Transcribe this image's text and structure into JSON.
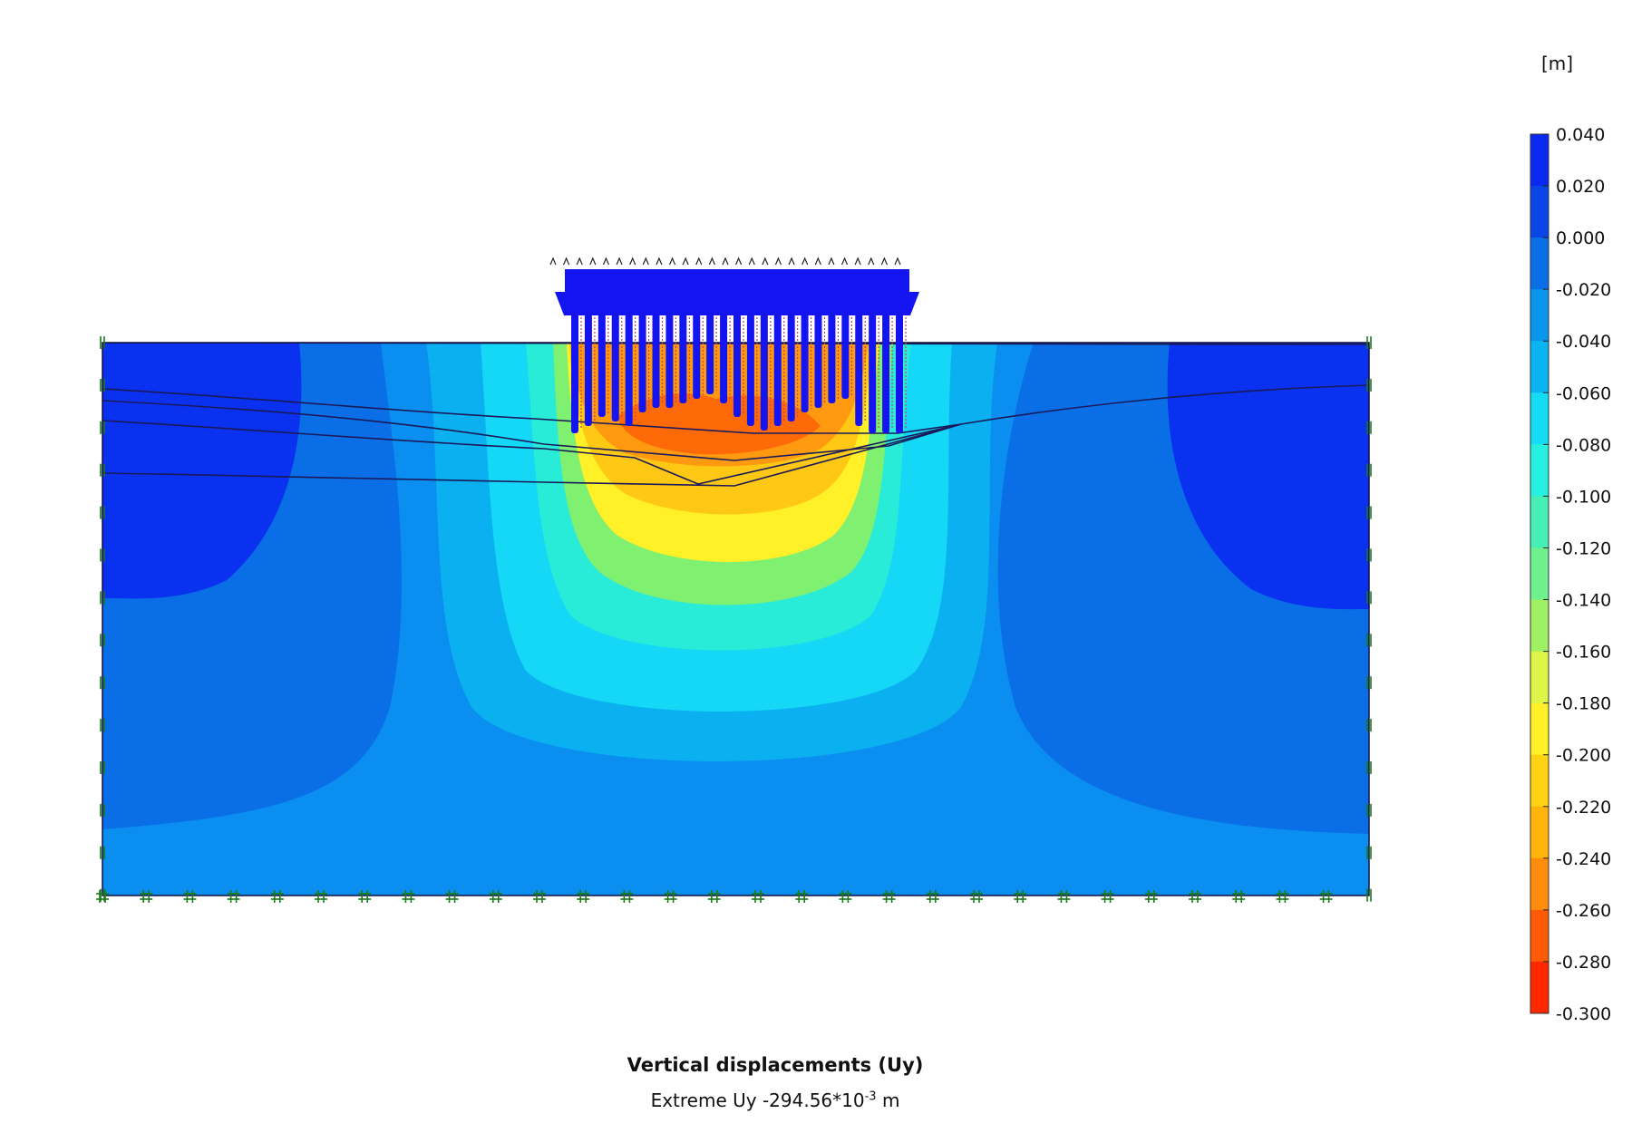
{
  "caption": {
    "title": "Vertical displacements (Uy)",
    "extreme_prefix": "Extreme Uy -294.56*10",
    "extreme_exponent": "-3",
    "extreme_unit": "m"
  },
  "legend": {
    "unit": "[m]",
    "levels": [
      "0.040",
      "0.020",
      "0.000",
      "-0.020",
      "-0.040",
      "-0.060",
      "-0.080",
      "-0.100",
      "-0.120",
      "-0.140",
      "-0.160",
      "-0.180",
      "-0.200",
      "-0.220",
      "-0.240",
      "-0.260",
      "-0.280",
      "-0.300"
    ],
    "colors": [
      "#0a28f0",
      "#0a46e6",
      "#0a6ee6",
      "#0a96ec",
      "#0ab4f0",
      "#14dcf5",
      "#28f0e0",
      "#46f0b4",
      "#6ef08c",
      "#a0f064",
      "#dcf546",
      "#fff028",
      "#ffd214",
      "#ffb40a",
      "#ff8c0a",
      "#ff5a05",
      "#ff2800",
      "#ff0a0a"
    ]
  },
  "colors": {
    "blue_dark": "#0a30f0",
    "blue_mid": "#0a6ee6",
    "blue_light": "#0a96ec",
    "cyan": "#14d8f5",
    "aqua": "#28ecd8",
    "green": "#80f070",
    "yellow": "#fff028",
    "orange": "#ff9a10",
    "red": "#ff5a05",
    "structure": "#1414f0",
    "fixity": "#1a7a1a"
  }
}
